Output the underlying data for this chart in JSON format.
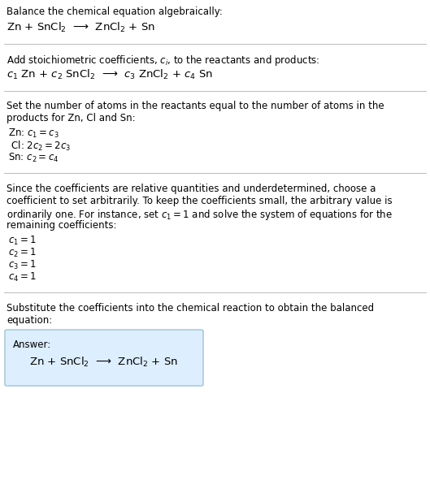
{
  "bg_color": "#ffffff",
  "text_color": "#000000",
  "section1_line1": "Balance the chemical equation algebraically:",
  "section1_eq": "Zn + SnCl$_2$  ⟶  ZnCl$_2$ + Sn",
  "section2_line1": "Add stoichiometric coefficients, $c_i$, to the reactants and products:",
  "section2_eq": "$c_1$ Zn + $c_2$ SnCl$_2$  ⟶  $c_3$ ZnCl$_2$ + $c_4$ Sn",
  "section3_line1": "Set the number of atoms in the reactants equal to the number of atoms in the",
  "section3_line2": "products for Zn, Cl and Sn:",
  "section3_items": [
    [
      "Zn: ",
      "$c_1 = c_3$"
    ],
    [
      " Cl: ",
      "$2 c_2 = 2 c_3$"
    ],
    [
      "Sn: ",
      "$c_2 = c_4$"
    ]
  ],
  "section4_line1": "Since the coefficients are relative quantities and underdetermined, choose a",
  "section4_line2": "coefficient to set arbitrarily. To keep the coefficients small, the arbitrary value is",
  "section4_line3": "ordinarily one. For instance, set $c_1 = 1$ and solve the system of equations for the",
  "section4_line4": "remaining coefficients:",
  "section4_items": [
    "$c_1 = 1$",
    "$c_2 = 1$",
    "$c_3 = 1$",
    "$c_4 = 1$"
  ],
  "section5_line1": "Substitute the coefficients into the chemical reaction to obtain the balanced",
  "section5_line2": "equation:",
  "answer_label": "Answer:",
  "answer_eq": "Zn + SnCl$_2$  ⟶  ZnCl$_2$ + Sn",
  "answer_box_color": "#ddeeff",
  "answer_box_border": "#aaccdd",
  "divider_color": "#bbbbbb",
  "fontsize_body": 8.5,
  "fontsize_eq": 9.5,
  "fontsize_label": 8.5
}
